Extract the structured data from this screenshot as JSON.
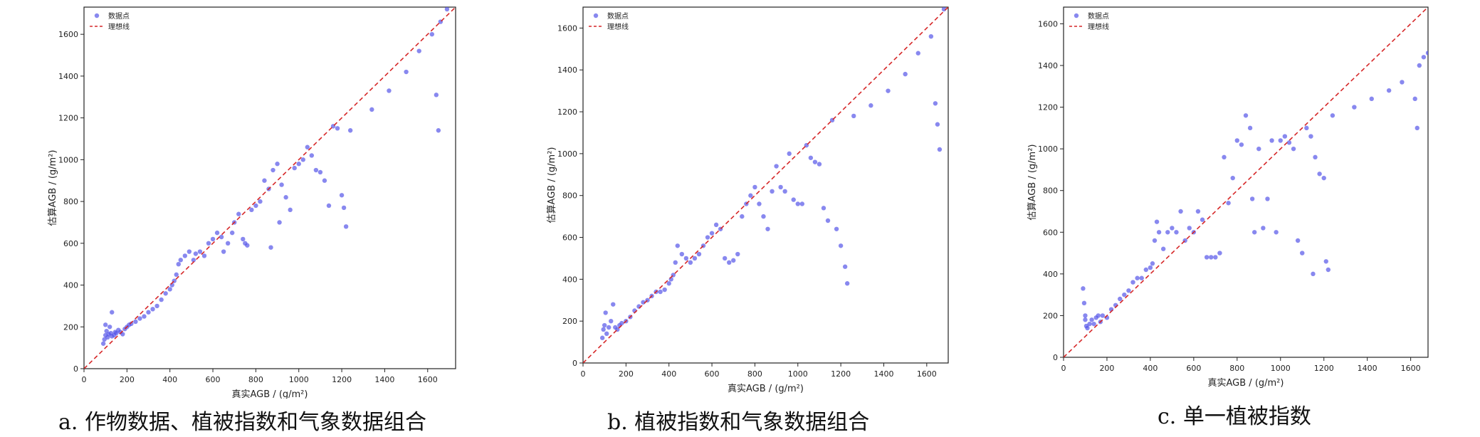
{
  "figure": {
    "colors": {
      "points": "#5555e8",
      "ideal_line": "#d62728",
      "axis": "#222222"
    }
  },
  "chart_data": [
    {
      "type": "scatter",
      "caption": "a. 作物数据、植被指数和气象数据组合",
      "xlabel": "真实AGB / (g/m²)",
      "ylabel": "估算AGB / (g/m²)",
      "xlim": [
        0,
        1730
      ],
      "ylim": [
        0,
        1730
      ],
      "xticks": [
        0,
        200,
        400,
        600,
        800,
        1000,
        1200,
        1400,
        1600
      ],
      "yticks": [
        0,
        200,
        400,
        600,
        800,
        1000,
        1200,
        1400,
        1600
      ],
      "legend": {
        "position": "top-left",
        "points_label": "数据点",
        "line_label": "理想线"
      },
      "grid": false,
      "series": [
        {
          "name": "数据点",
          "marker": "circle",
          "points": [
            [
              90,
              120
            ],
            [
              95,
              140
            ],
            [
              100,
              160
            ],
            [
              100,
              210
            ],
            [
              105,
              180
            ],
            [
              110,
              150
            ],
            [
              115,
              165
            ],
            [
              120,
              200
            ],
            [
              125,
              170
            ],
            [
              130,
              155
            ],
            [
              130,
              270
            ],
            [
              140,
              160
            ],
            [
              145,
              175
            ],
            [
              150,
              170
            ],
            [
              160,
              185
            ],
            [
              170,
              175
            ],
            [
              180,
              165
            ],
            [
              190,
              190
            ],
            [
              200,
              200
            ],
            [
              210,
              210
            ],
            [
              220,
              215
            ],
            [
              240,
              225
            ],
            [
              260,
              240
            ],
            [
              280,
              250
            ],
            [
              300,
              270
            ],
            [
              320,
              285
            ],
            [
              340,
              300
            ],
            [
              360,
              330
            ],
            [
              380,
              360
            ],
            [
              400,
              380
            ],
            [
              410,
              400
            ],
            [
              420,
              420
            ],
            [
              430,
              450
            ],
            [
              440,
              500
            ],
            [
              450,
              520
            ],
            [
              470,
              540
            ],
            [
              490,
              560
            ],
            [
              510,
              520
            ],
            [
              520,
              550
            ],
            [
              540,
              560
            ],
            [
              560,
              540
            ],
            [
              580,
              600
            ],
            [
              600,
              620
            ],
            [
              620,
              650
            ],
            [
              640,
              630
            ],
            [
              650,
              560
            ],
            [
              670,
              600
            ],
            [
              690,
              650
            ],
            [
              700,
              700
            ],
            [
              720,
              740
            ],
            [
              740,
              620
            ],
            [
              750,
              600
            ],
            [
              760,
              590
            ],
            [
              780,
              760
            ],
            [
              800,
              780
            ],
            [
              820,
              800
            ],
            [
              840,
              900
            ],
            [
              860,
              860
            ],
            [
              870,
              580
            ],
            [
              880,
              950
            ],
            [
              900,
              980
            ],
            [
              910,
              700
            ],
            [
              920,
              880
            ],
            [
              940,
              820
            ],
            [
              960,
              760
            ],
            [
              980,
              960
            ],
            [
              1000,
              980
            ],
            [
              1020,
              1000
            ],
            [
              1040,
              1060
            ],
            [
              1060,
              1020
            ],
            [
              1080,
              950
            ],
            [
              1100,
              940
            ],
            [
              1120,
              900
            ],
            [
              1140,
              780
            ],
            [
              1160,
              1160
            ],
            [
              1180,
              1150
            ],
            [
              1200,
              830
            ],
            [
              1210,
              770
            ],
            [
              1220,
              680
            ],
            [
              1240,
              1140
            ],
            [
              1340,
              1240
            ],
            [
              1420,
              1330
            ],
            [
              1500,
              1420
            ],
            [
              1560,
              1520
            ],
            [
              1620,
              1600
            ],
            [
              1640,
              1310
            ],
            [
              1650,
              1140
            ],
            [
              1660,
              1660
            ],
            [
              1690,
              1720
            ]
          ]
        },
        {
          "name": "理想线",
          "line": [
            [
              0,
              0
            ],
            [
              1730,
              1730
            ]
          ]
        }
      ]
    },
    {
      "type": "scatter",
      "caption": "b. 植被指数和气象数据组合",
      "xlabel": "真实AGB / (g/m²)",
      "ylabel": "估算AGB / (g/m²)",
      "xlim": [
        0,
        1700
      ],
      "ylim": [
        0,
        1700
      ],
      "xticks": [
        0,
        200,
        400,
        600,
        800,
        1000,
        1200,
        1400,
        1600
      ],
      "yticks": [
        0,
        200,
        400,
        600,
        800,
        1000,
        1200,
        1400,
        1600
      ],
      "legend": {
        "position": "top-left",
        "points_label": "数据点",
        "line_label": "理想线"
      },
      "grid": false,
      "series": [
        {
          "name": "数据点",
          "marker": "circle",
          "points": [
            [
              90,
              120
            ],
            [
              95,
              160
            ],
            [
              100,
              180
            ],
            [
              105,
              240
            ],
            [
              110,
              140
            ],
            [
              120,
              170
            ],
            [
              130,
              200
            ],
            [
              140,
              280
            ],
            [
              150,
              170
            ],
            [
              160,
              160
            ],
            [
              170,
              180
            ],
            [
              180,
              190
            ],
            [
              200,
              200
            ],
            [
              220,
              220
            ],
            [
              240,
              250
            ],
            [
              260,
              270
            ],
            [
              280,
              290
            ],
            [
              300,
              300
            ],
            [
              320,
              320
            ],
            [
              340,
              340
            ],
            [
              360,
              340
            ],
            [
              380,
              350
            ],
            [
              400,
              380
            ],
            [
              410,
              400
            ],
            [
              420,
              420
            ],
            [
              430,
              480
            ],
            [
              440,
              560
            ],
            [
              460,
              520
            ],
            [
              480,
              500
            ],
            [
              500,
              480
            ],
            [
              520,
              500
            ],
            [
              540,
              520
            ],
            [
              560,
              560
            ],
            [
              580,
              600
            ],
            [
              600,
              620
            ],
            [
              620,
              660
            ],
            [
              640,
              640
            ],
            [
              660,
              500
            ],
            [
              680,
              480
            ],
            [
              700,
              490
            ],
            [
              720,
              520
            ],
            [
              740,
              700
            ],
            [
              760,
              760
            ],
            [
              780,
              800
            ],
            [
              800,
              840
            ],
            [
              820,
              760
            ],
            [
              840,
              700
            ],
            [
              860,
              640
            ],
            [
              880,
              820
            ],
            [
              900,
              940
            ],
            [
              920,
              840
            ],
            [
              940,
              820
            ],
            [
              960,
              1000
            ],
            [
              980,
              780
            ],
            [
              1000,
              760
            ],
            [
              1020,
              760
            ],
            [
              1040,
              1040
            ],
            [
              1060,
              980
            ],
            [
              1080,
              960
            ],
            [
              1100,
              950
            ],
            [
              1120,
              740
            ],
            [
              1140,
              680
            ],
            [
              1160,
              1160
            ],
            [
              1180,
              640
            ],
            [
              1200,
              560
            ],
            [
              1220,
              460
            ],
            [
              1230,
              380
            ],
            [
              1260,
              1180
            ],
            [
              1340,
              1230
            ],
            [
              1420,
              1300
            ],
            [
              1500,
              1380
            ],
            [
              1560,
              1480
            ],
            [
              1620,
              1560
            ],
            [
              1640,
              1240
            ],
            [
              1650,
              1140
            ],
            [
              1660,
              1020
            ],
            [
              1680,
              1690
            ]
          ]
        },
        {
          "name": "理想线",
          "line": [
            [
              0,
              0
            ],
            [
              1700,
              1700
            ]
          ]
        }
      ]
    },
    {
      "type": "scatter",
      "caption": "c. 单一植被指数",
      "xlabel": "真实AGB / (g/m²)",
      "ylabel": "估算AGB / (g/m²)",
      "xlim": [
        0,
        1680
      ],
      "ylim": [
        0,
        1680
      ],
      "xticks": [
        0,
        200,
        400,
        600,
        800,
        1000,
        1200,
        1400,
        1600
      ],
      "yticks": [
        0,
        200,
        400,
        600,
        800,
        1000,
        1200,
        1400,
        1600
      ],
      "legend": {
        "position": "top-left",
        "points_label": "数据点",
        "line_label": "理想线"
      },
      "grid": false,
      "series": [
        {
          "name": "数据点",
          "marker": "circle",
          "points": [
            [
              90,
              330
            ],
            [
              95,
              260
            ],
            [
              100,
              200
            ],
            [
              100,
              180
            ],
            [
              105,
              150
            ],
            [
              110,
              140
            ],
            [
              120,
              160
            ],
            [
              130,
              180
            ],
            [
              140,
              160
            ],
            [
              150,
              190
            ],
            [
              160,
              200
            ],
            [
              170,
              170
            ],
            [
              180,
              200
            ],
            [
              200,
              190
            ],
            [
              220,
              230
            ],
            [
              240,
              250
            ],
            [
              260,
              280
            ],
            [
              280,
              300
            ],
            [
              300,
              320
            ],
            [
              320,
              360
            ],
            [
              340,
              380
            ],
            [
              360,
              380
            ],
            [
              380,
              420
            ],
            [
              400,
              430
            ],
            [
              410,
              450
            ],
            [
              420,
              560
            ],
            [
              430,
              650
            ],
            [
              440,
              600
            ],
            [
              460,
              520
            ],
            [
              480,
              600
            ],
            [
              500,
              620
            ],
            [
              520,
              600
            ],
            [
              540,
              700
            ],
            [
              560,
              560
            ],
            [
              580,
              620
            ],
            [
              600,
              600
            ],
            [
              620,
              700
            ],
            [
              640,
              660
            ],
            [
              660,
              480
            ],
            [
              680,
              480
            ],
            [
              700,
              480
            ],
            [
              720,
              500
            ],
            [
              740,
              960
            ],
            [
              760,
              740
            ],
            [
              780,
              860
            ],
            [
              800,
              1040
            ],
            [
              820,
              1020
            ],
            [
              840,
              1160
            ],
            [
              860,
              1100
            ],
            [
              870,
              760
            ],
            [
              880,
              600
            ],
            [
              900,
              1000
            ],
            [
              920,
              620
            ],
            [
              940,
              760
            ],
            [
              960,
              1040
            ],
            [
              980,
              600
            ],
            [
              1000,
              1040
            ],
            [
              1020,
              1060
            ],
            [
              1040,
              1030
            ],
            [
              1060,
              1000
            ],
            [
              1080,
              560
            ],
            [
              1100,
              500
            ],
            [
              1120,
              1100
            ],
            [
              1140,
              1060
            ],
            [
              1150,
              400
            ],
            [
              1160,
              960
            ],
            [
              1180,
              880
            ],
            [
              1200,
              860
            ],
            [
              1210,
              460
            ],
            [
              1220,
              420
            ],
            [
              1240,
              1160
            ],
            [
              1340,
              1200
            ],
            [
              1420,
              1240
            ],
            [
              1500,
              1280
            ],
            [
              1560,
              1320
            ],
            [
              1620,
              1240
            ],
            [
              1630,
              1100
            ],
            [
              1640,
              1400
            ],
            [
              1660,
              1440
            ],
            [
              1680,
              1460
            ]
          ]
        },
        {
          "name": "理想线",
          "line": [
            [
              0,
              0
            ],
            [
              1680,
              1680
            ]
          ]
        }
      ]
    }
  ]
}
